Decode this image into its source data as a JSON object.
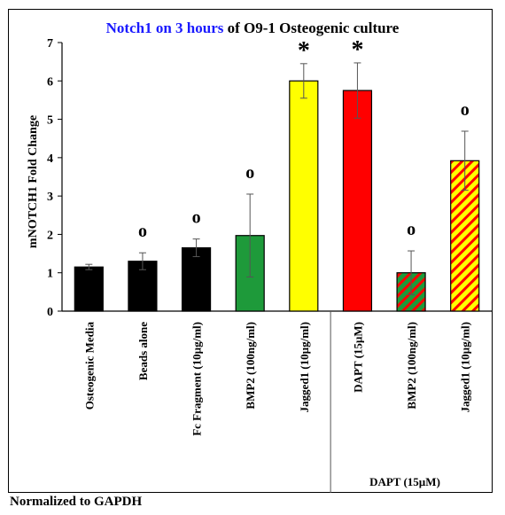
{
  "title": {
    "highlight": "Notch1 on 3 hours",
    "rest": " of O9-1 Osteogenic culture"
  },
  "footnote": "Normalized to GAPDH",
  "colors": {
    "black": "#000000",
    "green": "#1e9a3a",
    "yellow": "#ffff00",
    "red": "#ff0000",
    "highlight_text": "#1a1aff"
  },
  "chart_data": {
    "type": "bar",
    "title": "Notch1 on 3 hours of O9-1 Osteogenic culture",
    "ylabel": "mNOTCH1 Fold Change",
    "xlabel": "",
    "ylim": [
      0,
      7
    ],
    "yticks": [
      0,
      1,
      2,
      3,
      4,
      5,
      6,
      7
    ],
    "grid": false,
    "group_label": "DAPT (15µM)",
    "categories": [
      "Osteogenic Media",
      "Beads alone",
      "Fc Fragment (10µg/ml)",
      "BMP2 (100ng/ml)",
      "Jagged1 (10µg/ml)",
      "DAPT (15µM)",
      "BMP2 (100ng/ml)",
      "Jagged1 (10µg/ml)"
    ],
    "values": [
      1.15,
      1.3,
      1.65,
      1.97,
      6.0,
      5.75,
      1.0,
      3.92
    ],
    "errors": [
      0.07,
      0.22,
      0.23,
      1.08,
      0.45,
      0.72,
      0.57,
      0.77
    ],
    "annotations": [
      "",
      "o",
      "o",
      "o",
      "*",
      "*",
      "o",
      "o"
    ],
    "fills": [
      "black",
      "black",
      "black",
      "green",
      "yellow",
      "red",
      "green-red-hatch",
      "yellow-red-hatch"
    ]
  }
}
